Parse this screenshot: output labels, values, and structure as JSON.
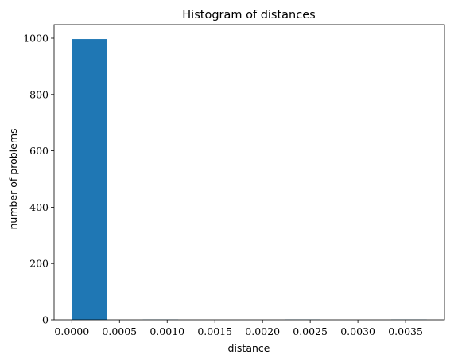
{
  "chart_data": {
    "type": "bar",
    "title": "Histogram of distances",
    "xlabel": "distance",
    "ylabel": "number of problems",
    "xlim": [
      -0.000186,
      0.003908
    ],
    "ylim": [
      0,
      1048
    ],
    "bar_color": "#1f77b4",
    "grid": false,
    "bins": [
      {
        "x0": 0.0,
        "x1": 0.0003722,
        "count": 997
      },
      {
        "x0": 0.0003722,
        "x1": 0.0007444,
        "count": 0
      },
      {
        "x0": 0.0007444,
        "x1": 0.0011166,
        "count": 1
      },
      {
        "x0": 0.0011166,
        "x1": 0.0014888,
        "count": 0
      },
      {
        "x0": 0.0014888,
        "x1": 0.001861,
        "count": 0
      },
      {
        "x0": 0.001861,
        "x1": 0.0022332,
        "count": 0
      },
      {
        "x0": 0.0022332,
        "x1": 0.0026054,
        "count": 1
      },
      {
        "x0": 0.0026054,
        "x1": 0.0029776,
        "count": 0
      },
      {
        "x0": 0.0029776,
        "x1": 0.0033498,
        "count": 0
      },
      {
        "x0": 0.0033498,
        "x1": 0.003722,
        "count": 1
      }
    ],
    "xticks": [
      {
        "value": 0.0,
        "label": "0.0000"
      },
      {
        "value": 0.0005,
        "label": "0.0005"
      },
      {
        "value": 0.001,
        "label": "0.0010"
      },
      {
        "value": 0.0015,
        "label": "0.0015"
      },
      {
        "value": 0.002,
        "label": "0.0020"
      },
      {
        "value": 0.0025,
        "label": "0.0025"
      },
      {
        "value": 0.003,
        "label": "0.0030"
      },
      {
        "value": 0.0035,
        "label": "0.0035"
      }
    ],
    "yticks": [
      {
        "value": 0,
        "label": "0"
      },
      {
        "value": 200,
        "label": "200"
      },
      {
        "value": 400,
        "label": "400"
      },
      {
        "value": 600,
        "label": "600"
      },
      {
        "value": 800,
        "label": "800"
      },
      {
        "value": 1000,
        "label": "1000"
      }
    ]
  }
}
